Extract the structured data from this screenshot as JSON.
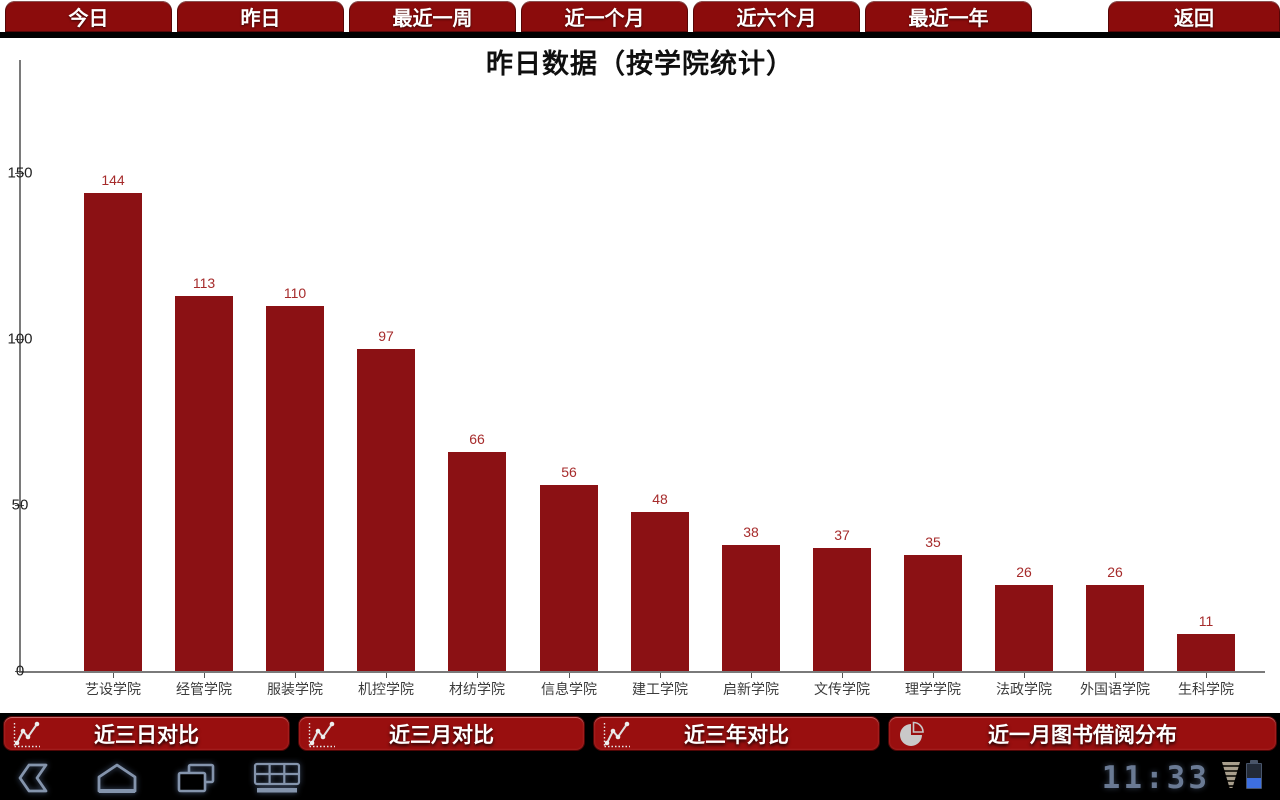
{
  "top_tabs": {
    "items": [
      {
        "label": "今日"
      },
      {
        "label": "昨日"
      },
      {
        "label": "最近一周"
      },
      {
        "label": "近一个月"
      },
      {
        "label": "近六个月"
      },
      {
        "label": "最近一年"
      }
    ],
    "back_label": "返回"
  },
  "chart_data": {
    "type": "bar",
    "title": "昨日数据（按学院统计）",
    "categories": [
      "艺设学院",
      "经管学院",
      "服装学院",
      "机控学院",
      "材纺学院",
      "信息学院",
      "建工学院",
      "启新学院",
      "文传学院",
      "理学学院",
      "法政学院",
      "外国语学院",
      "生科学院"
    ],
    "values": [
      144,
      113,
      110,
      97,
      66,
      56,
      48,
      38,
      37,
      35,
      26,
      26,
      11
    ],
    "xlabel": "",
    "ylabel": "",
    "ylim": [
      0,
      150
    ],
    "yticks": [
      0,
      50,
      100,
      150
    ],
    "grid": false,
    "legend": "none",
    "bar_color": "#8b1114",
    "value_label_color": "#a62b2b"
  },
  "bottom_buttons": [
    {
      "label": "近三日对比",
      "icon": "line-chart-icon"
    },
    {
      "label": "近三月对比",
      "icon": "line-chart-icon"
    },
    {
      "label": "近三年对比",
      "icon": "line-chart-icon"
    },
    {
      "label": "近一月图书借阅分布",
      "icon": "pie-chart-icon"
    }
  ],
  "system_bar": {
    "clock": "11:33",
    "icons": [
      "back-icon",
      "home-icon",
      "recents-icon",
      "keyboard-icon",
      "signal-icon",
      "battery-icon"
    ]
  },
  "colors": {
    "tab_red": "#8b0c0c",
    "button_red": "#990f0f",
    "bar_red": "#8b1114",
    "value_label_red": "#a62b2b",
    "nav_icon_blue": "#8494ac",
    "battery_charge_blue": "#3d6fe0"
  }
}
